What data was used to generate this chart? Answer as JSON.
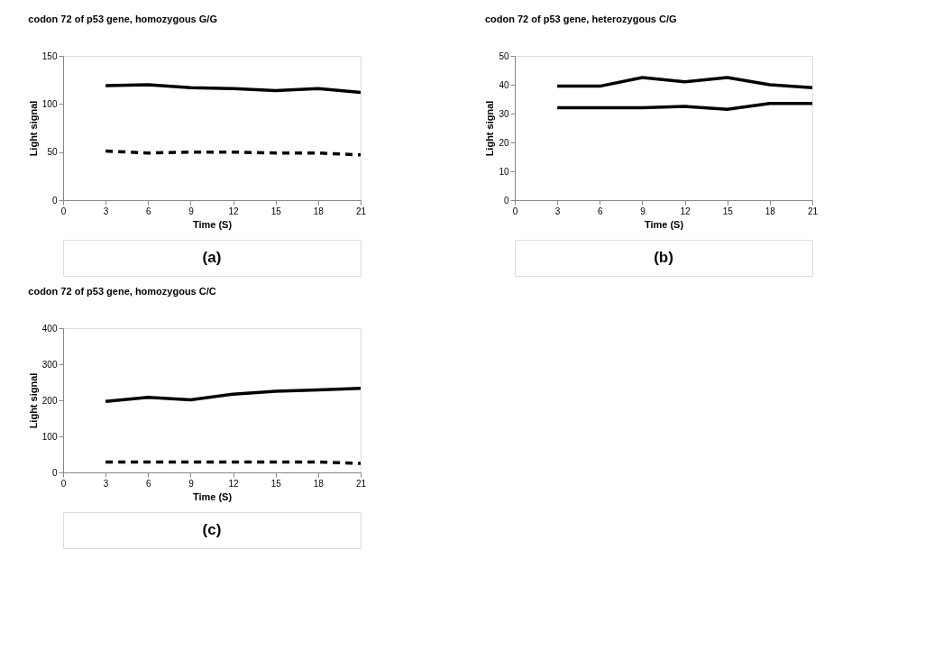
{
  "chart_data": [
    {
      "type": "line",
      "title": "codon 72 of p53 gene, homozygous G/G",
      "xlabel": "Time (S)",
      "ylabel": "Light signal",
      "x": [
        3,
        6,
        9,
        12,
        15,
        18,
        21
      ],
      "series": [
        {
          "color": "#000000",
          "line_style": "solid",
          "values": [
            119,
            120,
            117,
            116,
            114,
            116,
            112
          ]
        },
        {
          "color": "#000000",
          "line_style": "dashed",
          "values": [
            51,
            49,
            50,
            50,
            49,
            49,
            47
          ]
        }
      ],
      "xlim": [
        0,
        21
      ],
      "xticks": [
        0,
        3,
        6,
        9,
        12,
        15,
        18,
        21
      ],
      "ylim": [
        0,
        150
      ],
      "yticks": [
        0,
        50,
        100,
        150
      ],
      "grid": false,
      "annotations": [
        "(a)"
      ]
    },
    {
      "type": "line",
      "title": "codon 72 of p53 gene, heterozygous C/G",
      "xlabel": "Time (S)",
      "ylabel": "Light signal",
      "x": [
        3,
        6,
        9,
        12,
        15,
        18,
        21
      ],
      "series": [
        {
          "color": "#000000",
          "line_style": "solid",
          "values": [
            39.5,
            39.5,
            42.5,
            41,
            42.5,
            40,
            39
          ]
        },
        {
          "color": "#000000",
          "line_style": "solid",
          "values": [
            32,
            32,
            32,
            32.5,
            31.5,
            33.5,
            33.5
          ]
        }
      ],
      "xlim": [
        0,
        21
      ],
      "xticks": [
        0,
        3,
        6,
        9,
        12,
        15,
        18,
        21
      ],
      "ylim": [
        0,
        50
      ],
      "yticks": [
        0,
        10,
        20,
        30,
        40,
        50
      ],
      "grid": false,
      "annotations": [
        "(b)"
      ]
    },
    {
      "type": "line",
      "title": "codon 72 of p53 gene, homozygous C/C",
      "xlabel": "Time (S)",
      "ylabel": "Light signal",
      "x": [
        3,
        6,
        9,
        12,
        15,
        18,
        21
      ],
      "series": [
        {
          "color": "#000000",
          "line_style": "solid",
          "values": [
            197,
            208,
            201,
            217,
            225,
            229,
            233
          ]
        },
        {
          "color": "#000000",
          "line_style": "dashed",
          "values": [
            29,
            29,
            29,
            29,
            29,
            29,
            25
          ]
        }
      ],
      "xlim": [
        0,
        21
      ],
      "xticks": [
        0,
        3,
        6,
        9,
        12,
        15,
        18,
        21
      ],
      "ylim": [
        0,
        400
      ],
      "yticks": [
        0,
        100,
        200,
        300,
        400
      ],
      "grid": false,
      "annotations": [
        "(c)"
      ]
    }
  ]
}
